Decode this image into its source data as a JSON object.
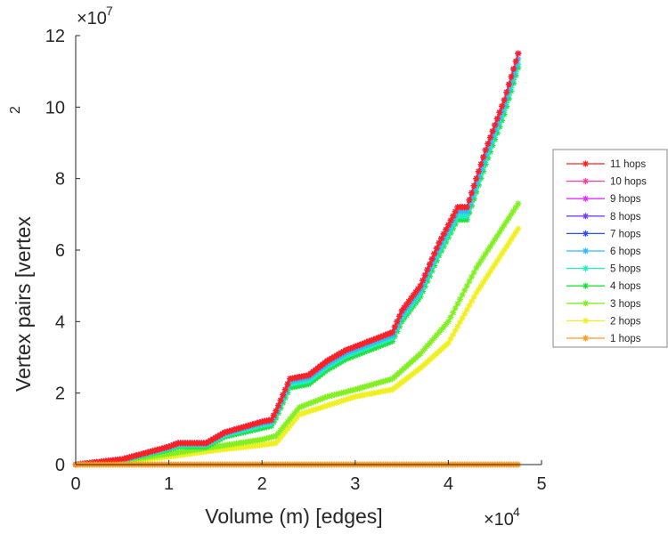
{
  "chart_data": {
    "type": "line",
    "title": "",
    "xlabel": "Volume (m) [edges]",
    "ylabel": "Vertex pairs [vertex",
    "ylabel_superscript": "2",
    "x_multiplier": "×10",
    "x_multiplier_exp": "4",
    "y_multiplier": "×10",
    "y_multiplier_exp": "7",
    "xlim": [
      0,
      5
    ],
    "ylim": [
      0,
      12
    ],
    "xticks": [
      "0",
      "1",
      "2",
      "3",
      "4",
      "5"
    ],
    "yticks": [
      "0",
      "2",
      "4",
      "6",
      "8",
      "10",
      "12"
    ],
    "grid": false,
    "legend_position": "right",
    "series": [
      {
        "name": "11 hops",
        "color": "#ff2020",
        "x": [
          0,
          0.5,
          1,
          1.1,
          1.4,
          1.6,
          2,
          2.1,
          2.15,
          2.3,
          2.5,
          2.7,
          2.9,
          3.2,
          3.4,
          3.5,
          3.7,
          3.9,
          4.1,
          4.2,
          4.4,
          4.6,
          4.75
        ],
        "y": [
          0,
          0.15,
          0.5,
          0.6,
          0.6,
          0.9,
          1.2,
          1.25,
          1.5,
          2.4,
          2.5,
          2.9,
          3.2,
          3.5,
          3.7,
          4.3,
          5.0,
          6.2,
          7.2,
          7.2,
          8.8,
          10.2,
          11.5
        ]
      },
      {
        "name": "10 hops",
        "color": "#ff3ea0",
        "x": [
          0,
          0.5,
          1,
          1.1,
          1.4,
          1.6,
          2,
          2.1,
          2.15,
          2.3,
          2.5,
          2.7,
          2.9,
          3.2,
          3.4,
          3.5,
          3.7,
          3.9,
          4.1,
          4.2,
          4.4,
          4.6,
          4.75
        ],
        "y": [
          0,
          0.15,
          0.5,
          0.6,
          0.6,
          0.9,
          1.2,
          1.25,
          1.5,
          2.4,
          2.5,
          2.9,
          3.2,
          3.5,
          3.7,
          4.3,
          5.0,
          6.2,
          7.2,
          7.2,
          8.8,
          10.2,
          11.5
        ]
      },
      {
        "name": "9 hops",
        "color": "#e030ff",
        "x": [
          0,
          0.5,
          1,
          1.1,
          1.4,
          1.6,
          2,
          2.1,
          2.15,
          2.3,
          2.5,
          2.7,
          2.9,
          3.2,
          3.4,
          3.5,
          3.7,
          3.9,
          4.1,
          4.2,
          4.4,
          4.6,
          4.75
        ],
        "y": [
          0,
          0.15,
          0.5,
          0.6,
          0.6,
          0.9,
          1.2,
          1.25,
          1.5,
          2.4,
          2.5,
          2.9,
          3.2,
          3.5,
          3.7,
          4.3,
          5.0,
          6.2,
          7.2,
          7.2,
          8.8,
          10.2,
          11.5
        ]
      },
      {
        "name": "8 hops",
        "color": "#7a3cff",
        "x": [
          0,
          0.5,
          1,
          1.1,
          1.4,
          1.6,
          2,
          2.1,
          2.15,
          2.3,
          2.5,
          2.7,
          2.9,
          3.2,
          3.4,
          3.5,
          3.7,
          3.9,
          4.1,
          4.2,
          4.4,
          4.6,
          4.75
        ],
        "y": [
          0,
          0.15,
          0.5,
          0.6,
          0.6,
          0.9,
          1.2,
          1.25,
          1.5,
          2.4,
          2.5,
          2.9,
          3.2,
          3.5,
          3.7,
          4.3,
          5.0,
          6.2,
          7.2,
          7.2,
          8.8,
          10.2,
          11.5
        ]
      },
      {
        "name": "7 hops",
        "color": "#2a50ff",
        "x": [
          0,
          0.5,
          1,
          1.1,
          1.4,
          1.6,
          2,
          2.1,
          2.15,
          2.3,
          2.5,
          2.7,
          2.9,
          3.2,
          3.4,
          3.5,
          3.7,
          3.9,
          4.1,
          4.2,
          4.4,
          4.6,
          4.75
        ],
        "y": [
          0,
          0.15,
          0.5,
          0.6,
          0.6,
          0.9,
          1.2,
          1.25,
          1.5,
          2.4,
          2.5,
          2.9,
          3.2,
          3.5,
          3.7,
          4.3,
          5.0,
          6.2,
          7.2,
          7.2,
          8.8,
          10.2,
          11.5
        ]
      },
      {
        "name": "6 hops",
        "color": "#30b8ff",
        "x": [
          0,
          0.5,
          1,
          1.1,
          1.4,
          1.6,
          2,
          2.1,
          2.15,
          2.3,
          2.5,
          2.7,
          2.9,
          3.2,
          3.4,
          3.5,
          3.7,
          3.9,
          4.1,
          4.2,
          4.4,
          4.6,
          4.75
        ],
        "y": [
          0,
          0.14,
          0.48,
          0.58,
          0.58,
          0.87,
          1.16,
          1.2,
          1.45,
          2.33,
          2.43,
          2.82,
          3.12,
          3.42,
          3.62,
          4.2,
          4.9,
          6.08,
          7.08,
          7.08,
          8.66,
          10.05,
          11.35
        ]
      },
      {
        "name": "5 hops",
        "color": "#20f0c0",
        "x": [
          0,
          0.5,
          1,
          1.1,
          1.4,
          1.6,
          2,
          2.1,
          2.15,
          2.3,
          2.5,
          2.7,
          2.9,
          3.2,
          3.4,
          3.5,
          3.7,
          3.9,
          4.1,
          4.2,
          4.4,
          4.6,
          4.75
        ],
        "y": [
          0,
          0.13,
          0.45,
          0.55,
          0.55,
          0.83,
          1.1,
          1.15,
          1.4,
          2.25,
          2.35,
          2.75,
          3.05,
          3.35,
          3.55,
          4.1,
          4.8,
          5.95,
          6.95,
          6.95,
          8.5,
          9.9,
          11.2
        ]
      },
      {
        "name": "4 hops",
        "color": "#20e040",
        "x": [
          0,
          0.5,
          1,
          1.1,
          1.4,
          1.6,
          2,
          2.1,
          2.15,
          2.3,
          2.5,
          2.7,
          2.9,
          3.2,
          3.4,
          3.5,
          3.7,
          3.9,
          4.1,
          4.2,
          4.4,
          4.6,
          4.75
        ],
        "y": [
          0,
          0.12,
          0.42,
          0.5,
          0.5,
          0.78,
          1.02,
          1.08,
          1.3,
          2.15,
          2.25,
          2.65,
          2.95,
          3.25,
          3.45,
          4.0,
          4.7,
          5.85,
          6.85,
          6.85,
          8.4,
          9.8,
          11.1
        ]
      },
      {
        "name": "3 hops",
        "color": "#80f020",
        "x": [
          0,
          0.5,
          1,
          1.5,
          2,
          2.15,
          2.4,
          2.7,
          3,
          3.4,
          3.7,
          4,
          4.3,
          4.75
        ],
        "y": [
          0,
          0.1,
          0.3,
          0.5,
          0.7,
          0.8,
          1.6,
          1.9,
          2.1,
          2.4,
          3.1,
          4.0,
          5.5,
          7.3
        ]
      },
      {
        "name": "2 hops",
        "color": "#f0f020",
        "x": [
          0,
          0.5,
          1,
          1.5,
          2,
          2.15,
          2.4,
          2.7,
          3,
          3.4,
          3.7,
          4,
          4.3,
          4.75
        ],
        "y": [
          0,
          0.07,
          0.22,
          0.4,
          0.55,
          0.6,
          1.4,
          1.65,
          1.9,
          2.1,
          2.7,
          3.4,
          4.8,
          6.6
        ]
      },
      {
        "name": "1 hops",
        "color": "#ff9a20",
        "x": [
          0,
          4.75
        ],
        "y": [
          0,
          0
        ]
      }
    ]
  }
}
